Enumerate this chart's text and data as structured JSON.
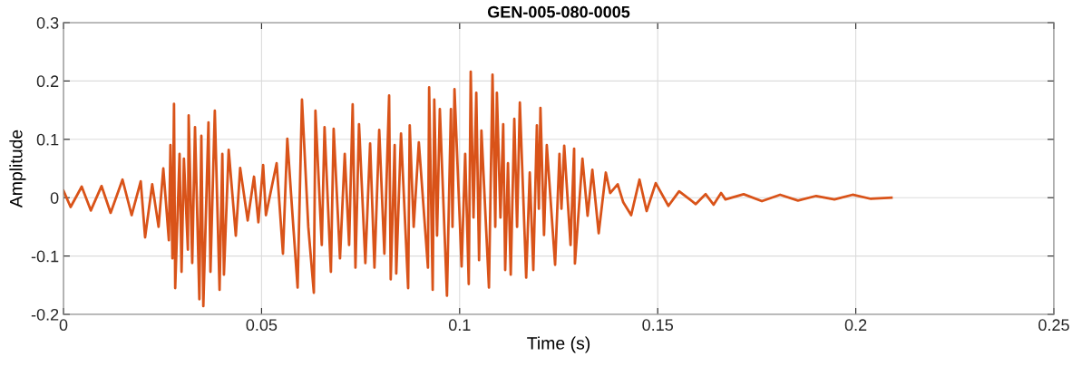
{
  "chart_data": {
    "type": "line",
    "title": "GEN-005-080-0005",
    "xlabel": "Time (s)",
    "ylabel": "Amplitude",
    "xlim": [
      0,
      0.25
    ],
    "ylim": [
      -0.2,
      0.3
    ],
    "xticks": [
      0,
      0.05,
      0.1,
      0.15,
      0.2,
      0.25
    ],
    "yticks": [
      -0.2,
      -0.1,
      0,
      0.1,
      0.2,
      0.3
    ],
    "grid": true,
    "line_style": "solid",
    "series": [
      {
        "color": "#d95319",
        "x": [
          0,
          0.0018,
          0.0046,
          0.0069,
          0.0096,
          0.0119,
          0.0149,
          0.0172,
          0.0195,
          0.0206,
          0.0224,
          0.024,
          0.0252,
          0.0266,
          0.027,
          0.0275,
          0.0279,
          0.0282,
          0.0293,
          0.0298,
          0.0304,
          0.0314,
          0.0316,
          0.0325,
          0.0332,
          0.0343,
          0.0348,
          0.0353,
          0.0366,
          0.0371,
          0.0382,
          0.0394,
          0.0401,
          0.0405,
          0.0417,
          0.0435,
          0.0446,
          0.0465,
          0.0481,
          0.0492,
          0.0504,
          0.0511,
          0.0538,
          0.0554,
          0.0565,
          0.0577,
          0.0591,
          0.0602,
          0.0618,
          0.0632,
          0.0636,
          0.0652,
          0.0659,
          0.0675,
          0.0682,
          0.0698,
          0.071,
          0.0721,
          0.073,
          0.0737,
          0.0746,
          0.0762,
          0.0774,
          0.0785,
          0.0797,
          0.081,
          0.0822,
          0.0826,
          0.0836,
          0.084,
          0.0852,
          0.087,
          0.0874,
          0.0884,
          0.0897,
          0.092,
          0.0923,
          0.0932,
          0.0936,
          0.0943,
          0.095,
          0.0968,
          0.0978,
          0.0982,
          0.0987,
          0.1005,
          0.1014,
          0.1023,
          0.1028,
          0.1035,
          0.1042,
          0.1049,
          0.1055,
          0.1074,
          0.1083,
          0.109,
          0.1094,
          0.1103,
          0.111,
          0.1115,
          0.1122,
          0.1129,
          0.1138,
          0.1145,
          0.1152,
          0.1168,
          0.1177,
          0.1186,
          0.1195,
          0.12,
          0.1204,
          0.1213,
          0.122,
          0.1241,
          0.1252,
          0.1257,
          0.1264,
          0.128,
          0.1289,
          0.1291,
          0.131,
          0.1323,
          0.1335,
          0.1351,
          0.1369,
          0.138,
          0.1399,
          0.1413,
          0.1433,
          0.1454,
          0.1472,
          0.1495,
          0.1527,
          0.1554,
          0.1596,
          0.1621,
          0.1641,
          0.166,
          0.1671,
          0.1717,
          0.1763,
          0.1809,
          0.1854,
          0.19,
          0.1946,
          0.1992,
          0.2038,
          0.209
        ],
        "values": [
          0.012,
          -0.016,
          0.019,
          -0.022,
          0.02,
          -0.026,
          0.031,
          -0.03,
          0.028,
          -0.068,
          0.023,
          -0.05,
          0.05,
          -0.073,
          0.09,
          -0.104,
          0.161,
          -0.155,
          0.075,
          -0.127,
          0.067,
          -0.089,
          0.141,
          -0.112,
          0.121,
          -0.174,
          0.106,
          -0.186,
          0.129,
          -0.127,
          0.149,
          -0.158,
          0.075,
          -0.132,
          0.082,
          -0.065,
          0.051,
          -0.039,
          0.036,
          -0.042,
          0.056,
          -0.03,
          0.059,
          -0.096,
          0.101,
          -0.019,
          -0.154,
          0.168,
          -0.05,
          -0.163,
          0.149,
          -0.081,
          0.121,
          -0.127,
          0.118,
          -0.104,
          0.075,
          -0.081,
          0.16,
          -0.12,
          0.126,
          -0.112,
          0.093,
          -0.12,
          0.116,
          -0.096,
          0.175,
          -0.14,
          0.09,
          -0.13,
          0.11,
          -0.155,
          0.124,
          -0.05,
          0.095,
          -0.12,
          0.189,
          -0.158,
          0.168,
          -0.065,
          0.152,
          -0.168,
          0.152,
          -0.05,
          0.186,
          -0.118,
          0.075,
          -0.148,
          0.216,
          -0.034,
          0.18,
          -0.107,
          0.115,
          -0.154,
          0.211,
          -0.05,
          0.18,
          -0.034,
          0.126,
          -0.124,
          0.059,
          -0.132,
          0.135,
          -0.05,
          0.163,
          -0.137,
          0.043,
          -0.124,
          0.124,
          -0.019,
          0.154,
          -0.064,
          0.09,
          -0.115,
          0.075,
          -0.019,
          0.089,
          -0.081,
          0.084,
          -0.113,
          0.067,
          -0.031,
          0.048,
          -0.061,
          0.043,
          0.008,
          0.023,
          -0.008,
          -0.03,
          0.031,
          -0.023,
          0.025,
          -0.014,
          0.011,
          -0.011,
          0.006,
          -0.012,
          0.008,
          -0.003,
          0.006,
          -0.006,
          0.005,
          -0.005,
          0.003,
          -0.003,
          0.005,
          -0.002,
          0.0
        ]
      }
    ]
  }
}
